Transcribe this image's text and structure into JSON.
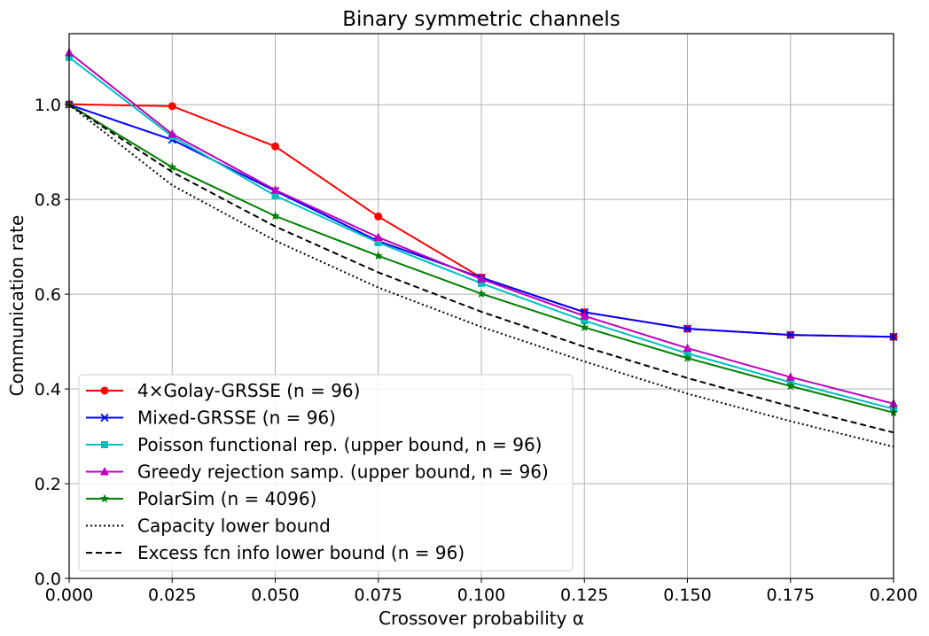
{
  "chart_data": {
    "type": "line",
    "title": "Binary symmetric channels",
    "xlabel": "Crossover probability α",
    "ylabel": "Communication rate",
    "xlim": [
      0.0,
      0.2
    ],
    "ylim": [
      0.0,
      1.15
    ],
    "grid": true,
    "legend_position": "lower-left",
    "x": [
      0.0,
      0.025,
      0.05,
      0.075,
      0.1,
      0.125,
      0.15,
      0.175,
      0.2
    ],
    "xticks": [
      0.0,
      0.025,
      0.05,
      0.075,
      0.1,
      0.125,
      0.15,
      0.175,
      0.2
    ],
    "xtick_labels": [
      "0.000",
      "0.025",
      "0.050",
      "0.075",
      "0.100",
      "0.125",
      "0.150",
      "0.175",
      "0.200"
    ],
    "yticks": [
      0.0,
      0.2,
      0.4,
      0.6,
      0.8,
      1.0
    ],
    "ytick_labels": [
      "0.0",
      "0.2",
      "0.4",
      "0.6",
      "0.8",
      "1.0"
    ],
    "series": [
      {
        "name": "4×Golay-GRSSE (n = 96)",
        "color": "#ff0000",
        "marker": "circle",
        "dash": "solid",
        "values": [
          1.001,
          0.997,
          0.912,
          0.764,
          0.635,
          0.562,
          0.527,
          0.514,
          0.51
        ]
      },
      {
        "name": "Mixed-GRSSE (n = 96)",
        "color": "#0000ff",
        "marker": "x",
        "dash": "solid",
        "values": [
          1.0,
          0.926,
          0.818,
          0.712,
          0.635,
          0.562,
          0.527,
          0.514,
          0.51
        ]
      },
      {
        "name": "Poisson functional rep. (upper bound, n = 96)",
        "color": "#00bfbf",
        "marker": "square",
        "dash": "solid",
        "values": [
          1.1,
          0.933,
          0.808,
          0.709,
          0.623,
          0.544,
          0.475,
          0.414,
          0.358
        ]
      },
      {
        "name": "Greedy rejection samp. (upper bound, n = 96)",
        "color": "#bf00bf",
        "marker": "triangle",
        "dash": "solid",
        "values": [
          1.11,
          0.938,
          0.82,
          0.72,
          0.632,
          0.554,
          0.486,
          0.425,
          0.369
        ]
      },
      {
        "name": "PolarSim (n = 4096)",
        "color": "#008000",
        "marker": "star",
        "dash": "solid",
        "values": [
          1.0,
          0.868,
          0.765,
          0.681,
          0.601,
          0.53,
          0.465,
          0.406,
          0.35
        ]
      },
      {
        "name": "Capacity lower bound",
        "color": "#000000",
        "marker": "none",
        "dash": "dotted",
        "values": [
          1.0,
          0.83,
          0.713,
          0.614,
          0.531,
          0.458,
          0.39,
          0.332,
          0.278
        ]
      },
      {
        "name": "Excess fcn info lower bound (n = 96)",
        "color": "#000000",
        "marker": "none",
        "dash": "dashed",
        "values": [
          1.0,
          0.858,
          0.743,
          0.646,
          0.563,
          0.489,
          0.423,
          0.363,
          0.308
        ]
      }
    ]
  }
}
